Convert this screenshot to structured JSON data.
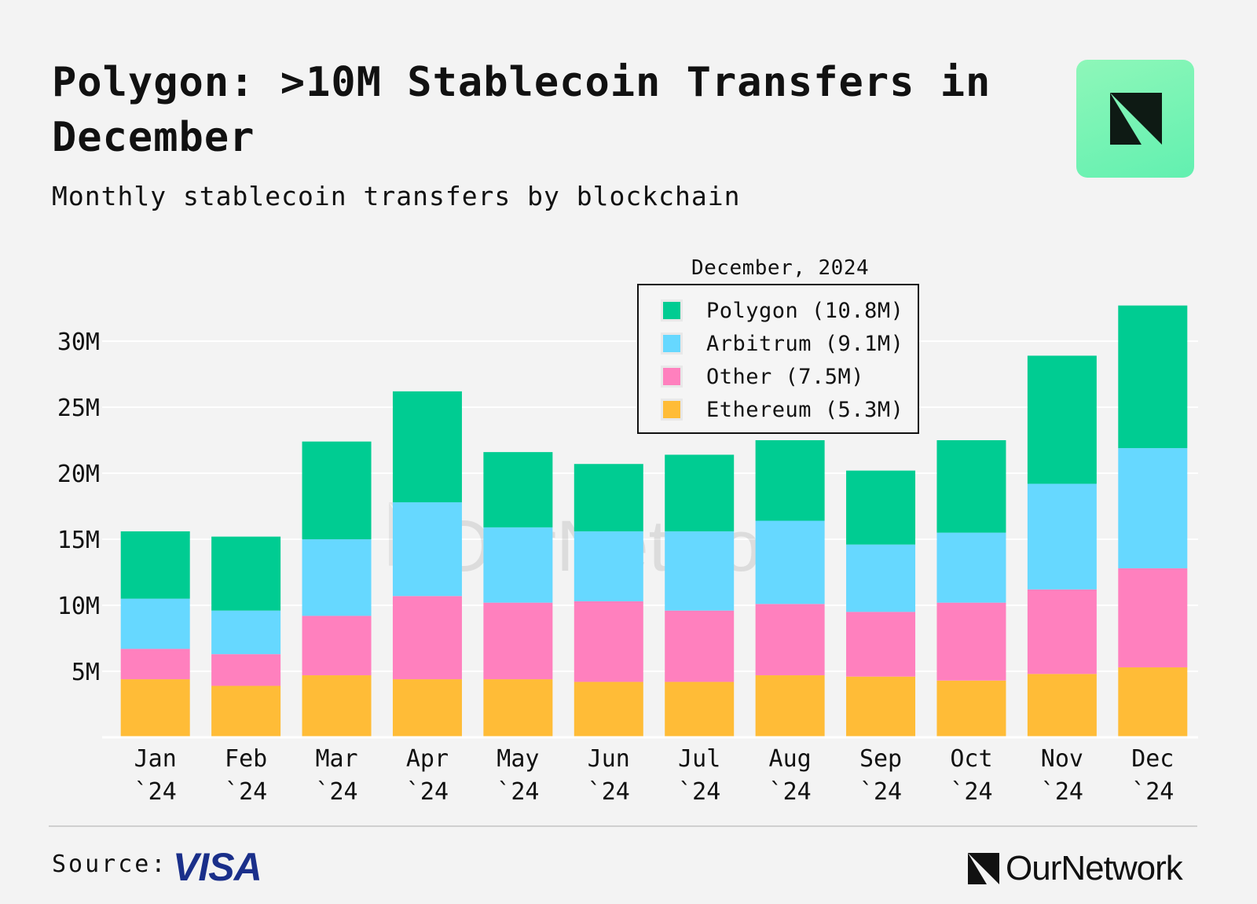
{
  "header": {
    "title": "Polygon: >10M Stablecoin Transfers in December",
    "subtitle": "Monthly stablecoin transfers by blockchain",
    "logo_icon": "ournetwork-logo-icon"
  },
  "legend": {
    "title": "December, 2024",
    "items": [
      {
        "label": "Polygon (10.8M)",
        "color": "#00cc92"
      },
      {
        "label": "Arbitrum (9.1M)",
        "color": "#66d8ff"
      },
      {
        "label": "Other (7.5M)",
        "color": "#ff80be"
      },
      {
        "label": "Ethereum (5.3M)",
        "color": "#ffbc37"
      }
    ]
  },
  "watermark": "OurNetwork",
  "footer": {
    "source_label": "Source:",
    "source_logo": "VISA",
    "brand_name": "OurNetwork"
  },
  "chart_data": {
    "type": "bar",
    "stacked": true,
    "title": "Polygon: >10M Stablecoin Transfers in December",
    "subtitle": "Monthly stablecoin transfers by blockchain",
    "categories": [
      [
        "Jan",
        "`24"
      ],
      [
        "Feb",
        "`24"
      ],
      [
        "Mar",
        "`24"
      ],
      [
        "Apr",
        "`24"
      ],
      [
        "May",
        "`24"
      ],
      [
        "Jun",
        "`24"
      ],
      [
        "Jul",
        "`24"
      ],
      [
        "Aug",
        "`24"
      ],
      [
        "Sep",
        "`24"
      ],
      [
        "Oct",
        "`24"
      ],
      [
        "Nov",
        "`24"
      ],
      [
        "Dec",
        "`24"
      ]
    ],
    "series": [
      {
        "name": "Ethereum",
        "color": "#ffbc37",
        "values": [
          4.4,
          3.9,
          4.7,
          4.4,
          4.4,
          4.2,
          4.2,
          4.7,
          4.6,
          4.3,
          4.8,
          5.3
        ]
      },
      {
        "name": "Other",
        "color": "#ff80be",
        "values": [
          2.3,
          2.4,
          4.5,
          6.3,
          5.8,
          6.1,
          5.4,
          5.4,
          4.9,
          5.9,
          6.4,
          7.5
        ]
      },
      {
        "name": "Arbitrum",
        "color": "#66d8ff",
        "values": [
          3.8,
          3.3,
          5.8,
          7.1,
          5.7,
          5.3,
          6.0,
          6.3,
          5.1,
          5.3,
          8.0,
          9.1
        ]
      },
      {
        "name": "Polygon",
        "color": "#00cc92",
        "values": [
          5.1,
          5.6,
          7.4,
          8.4,
          5.7,
          5.1,
          5.8,
          6.1,
          5.6,
          7.0,
          9.7,
          10.8
        ]
      }
    ],
    "y_ticks": [
      {
        "value": 5,
        "label": "5M"
      },
      {
        "value": 10,
        "label": "10M"
      },
      {
        "value": 15,
        "label": "15M"
      },
      {
        "value": 20,
        "label": "20M"
      },
      {
        "value": 25,
        "label": "25M"
      },
      {
        "value": 30,
        "label": "30M"
      }
    ],
    "ylim": [
      0,
      33
    ],
    "unit": "M",
    "grid": true,
    "legend_position": "top-center"
  }
}
